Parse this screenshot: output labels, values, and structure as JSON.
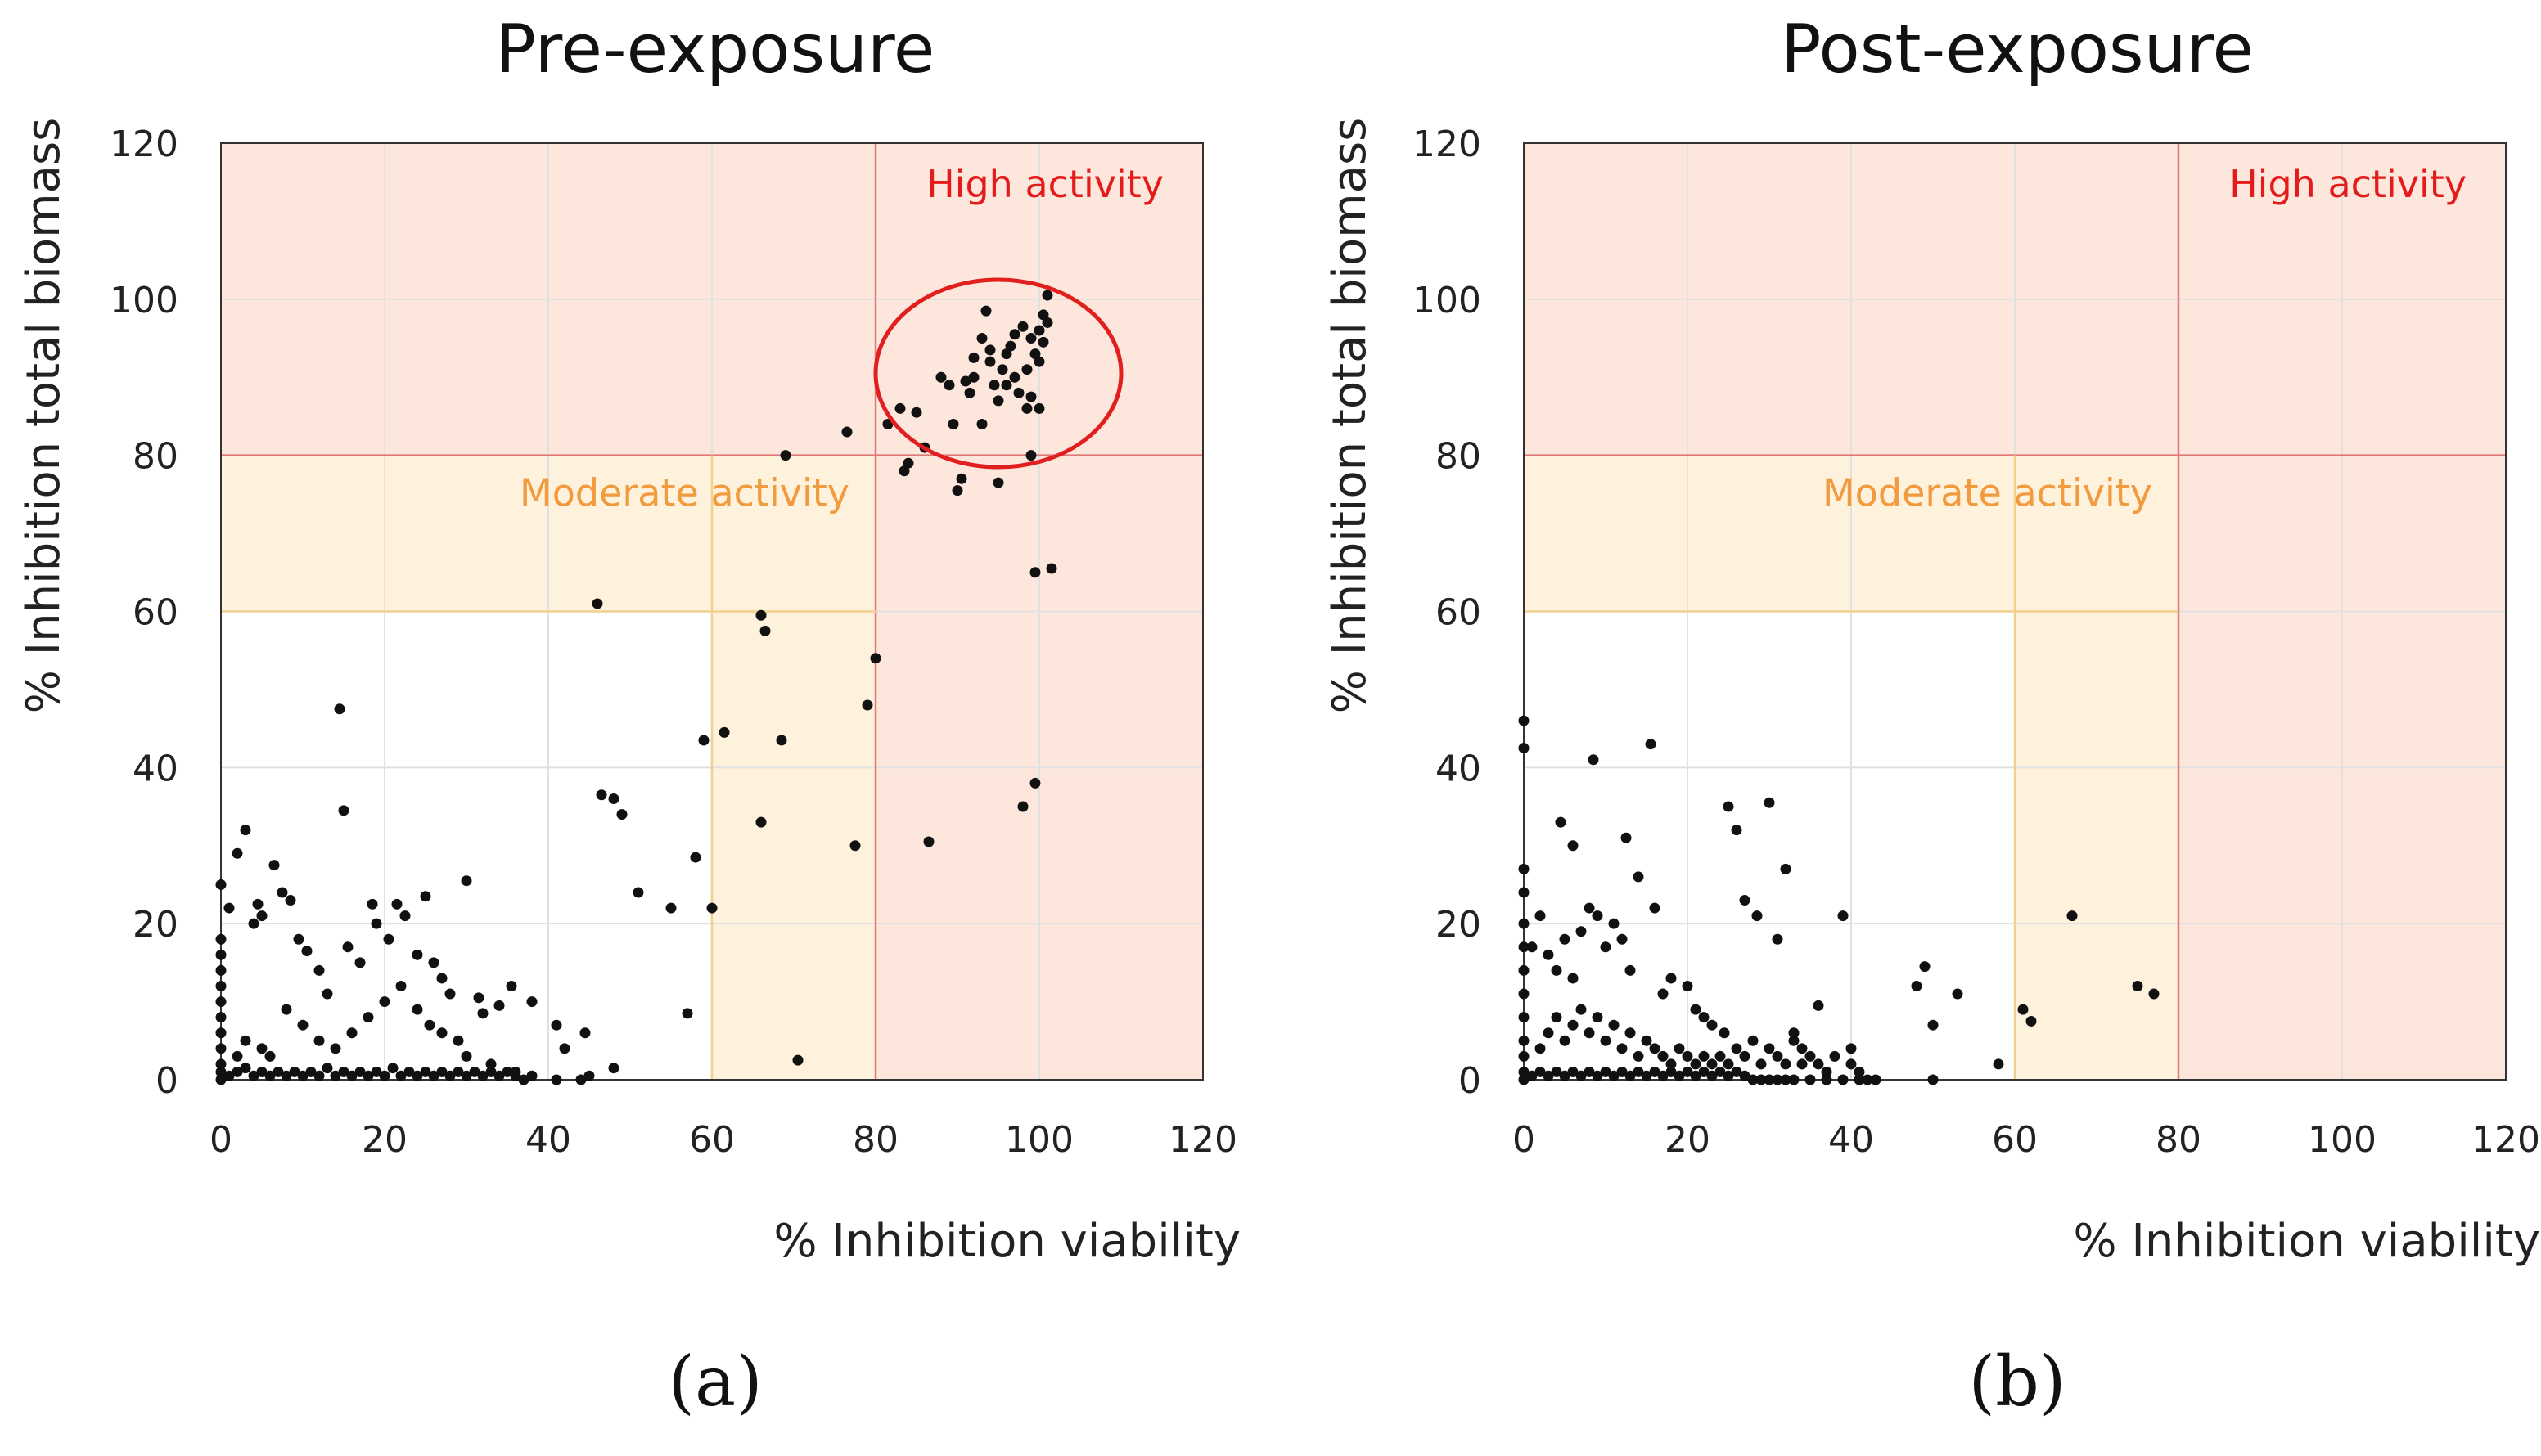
{
  "colors": {
    "high_fill": "#fde7dc",
    "moderate_fill": "#fff2dc",
    "high_line": "#e07a7a",
    "moderate_line": "#f1d08d",
    "high_text": "#e31b1b",
    "moderate_text": "#f19a3e",
    "grid": "#e1e1e1",
    "frame": "#333333",
    "point": "#111111",
    "ellipse": "#e21f1f"
  },
  "chart_data": [
    {
      "type": "scatter",
      "title": "Pre-exposure",
      "xlabel": "% Inhibition viability",
      "ylabel": "% Inhibition total biomass",
      "xlim": [
        0,
        120
      ],
      "ylim": [
        0,
        120
      ],
      "xticks": [
        0,
        20,
        40,
        60,
        80,
        100,
        120
      ],
      "yticks": [
        0,
        20,
        40,
        60,
        80,
        100,
        120
      ],
      "grid": true,
      "panel_label": "(a)",
      "regions": {
        "high": {
          "label": "High activity",
          "x_threshold": 80,
          "y_threshold": 80
        },
        "moderate": {
          "label": "Moderate activity",
          "x_threshold": 60,
          "y_threshold": 60
        }
      },
      "highlight_ellipse": {
        "cx": 95,
        "cy": 90.5,
        "rx": 15,
        "ry": 12
      },
      "points": [
        [
          0,
          25
        ],
        [
          0,
          18
        ],
        [
          0,
          16
        ],
        [
          0,
          14
        ],
        [
          0,
          12
        ],
        [
          0,
          10
        ],
        [
          0,
          8
        ],
        [
          0,
          6
        ],
        [
          0,
          4
        ],
        [
          0,
          2
        ],
        [
          0,
          1
        ],
        [
          0,
          0
        ],
        [
          1,
          22
        ],
        [
          2,
          29
        ],
        [
          3,
          32
        ],
        [
          4,
          20
        ],
        [
          4.5,
          22.5
        ],
        [
          5,
          21
        ],
        [
          6.5,
          27.5
        ],
        [
          7.5,
          24
        ],
        [
          8.5,
          23
        ],
        [
          9.5,
          18
        ],
        [
          14.5,
          47.5
        ],
        [
          15,
          34.5
        ],
        [
          10.5,
          16.5
        ],
        [
          12,
          14
        ],
        [
          13,
          11
        ],
        [
          15.5,
          17
        ],
        [
          17,
          15
        ],
        [
          18.5,
          22.5
        ],
        [
          19,
          20
        ],
        [
          20.5,
          18
        ],
        [
          21.5,
          22.5
        ],
        [
          22.5,
          21
        ],
        [
          24,
          16
        ],
        [
          25,
          23.5
        ],
        [
          26,
          15
        ],
        [
          27,
          13
        ],
        [
          28,
          11
        ],
        [
          30,
          25.5
        ],
        [
          31.5,
          10.5
        ],
        [
          32,
          8.5
        ],
        [
          34,
          9.5
        ],
        [
          35.5,
          12
        ],
        [
          38,
          10
        ],
        [
          41,
          7
        ],
        [
          42,
          4
        ],
        [
          44.5,
          6
        ],
        [
          48,
          1.5
        ],
        [
          20,
          10
        ],
        [
          18,
          8
        ],
        [
          16,
          6
        ],
        [
          14,
          4
        ],
        [
          12,
          5
        ],
        [
          10,
          7
        ],
        [
          8,
          9
        ],
        [
          6,
          3
        ],
        [
          5,
          4
        ],
        [
          3,
          5
        ],
        [
          2,
          3
        ],
        [
          22,
          12
        ],
        [
          24,
          9
        ],
        [
          25.5,
          7
        ],
        [
          27,
          6
        ],
        [
          29,
          5
        ],
        [
          30,
          3
        ],
        [
          33,
          2
        ],
        [
          36,
          1
        ],
        [
          38,
          0.5
        ],
        [
          41,
          0
        ],
        [
          44,
          0
        ],
        [
          45,
          0.5
        ],
        [
          1,
          0.5
        ],
        [
          2,
          1
        ],
        [
          3,
          1.5
        ],
        [
          4,
          0.5
        ],
        [
          5,
          1
        ],
        [
          6,
          0.5
        ],
        [
          7,
          1
        ],
        [
          8,
          0.5
        ],
        [
          9,
          1
        ],
        [
          10,
          0.5
        ],
        [
          11,
          1
        ],
        [
          12,
          0.5
        ],
        [
          13,
          1.5
        ],
        [
          14,
          0.5
        ],
        [
          15,
          1
        ],
        [
          16,
          0.5
        ],
        [
          17,
          1
        ],
        [
          18,
          0.5
        ],
        [
          19,
          1
        ],
        [
          20,
          0.5
        ],
        [
          21,
          1.5
        ],
        [
          22,
          0.5
        ],
        [
          23,
          1
        ],
        [
          24,
          0.5
        ],
        [
          25,
          1
        ],
        [
          26,
          0.5
        ],
        [
          27,
          1
        ],
        [
          28,
          0.5
        ],
        [
          29,
          1
        ],
        [
          30,
          0.5
        ],
        [
          31,
          1
        ],
        [
          32,
          0.5
        ],
        [
          33,
          1
        ],
        [
          34,
          0.5
        ],
        [
          35,
          1
        ],
        [
          36,
          0.5
        ],
        [
          37,
          0
        ],
        [
          46,
          61
        ],
        [
          46.5,
          36.5
        ],
        [
          48,
          36
        ],
        [
          49,
          34
        ],
        [
          51,
          24
        ],
        [
          55,
          22
        ],
        [
          57,
          8.5
        ],
        [
          58,
          28.5
        ],
        [
          59,
          43.5
        ],
        [
          60,
          22
        ],
        [
          61.5,
          44.5
        ],
        [
          66,
          59.5
        ],
        [
          66.5,
          57.5
        ],
        [
          66,
          33
        ],
        [
          68.5,
          43.5
        ],
        [
          69,
          80
        ],
        [
          70.5,
          2.5
        ],
        [
          76.5,
          83
        ],
        [
          77.5,
          30
        ],
        [
          79,
          48
        ],
        [
          80,
          54
        ],
        [
          81.5,
          84
        ],
        [
          83,
          86
        ],
        [
          83.5,
          78
        ],
        [
          84,
          79
        ],
        [
          85,
          85.5
        ],
        [
          86,
          81
        ],
        [
          86.5,
          30.5
        ],
        [
          88,
          90
        ],
        [
          89,
          89
        ],
        [
          89.5,
          84
        ],
        [
          90,
          75.5
        ],
        [
          90.5,
          77
        ],
        [
          91,
          89.5
        ],
        [
          92,
          90
        ],
        [
          93,
          84
        ],
        [
          93.5,
          98.5
        ],
        [
          94,
          92
        ],
        [
          94.5,
          89
        ],
        [
          95,
          76.5
        ],
        [
          95.5,
          91
        ],
        [
          96,
          93
        ],
        [
          96.5,
          94
        ],
        [
          97,
          90
        ],
        [
          97.5,
          88
        ],
        [
          98,
          35
        ],
        [
          98.5,
          86
        ],
        [
          99,
          80
        ],
        [
          99.5,
          65
        ],
        [
          99.5,
          38
        ],
        [
          100,
          92
        ],
        [
          100.5,
          98
        ],
        [
          101,
          100.5
        ],
        [
          101.5,
          65.5
        ],
        [
          99,
          95
        ],
        [
          100,
          96
        ],
        [
          101,
          97
        ],
        [
          98,
          96.5
        ],
        [
          99.5,
          93
        ],
        [
          100.5,
          94.5
        ],
        [
          98.5,
          91
        ],
        [
          97,
          95.5
        ],
        [
          96,
          89
        ],
        [
          95,
          87
        ],
        [
          94,
          93.5
        ],
        [
          93,
          95
        ],
        [
          92,
          92.5
        ],
        [
          91.5,
          88
        ],
        [
          99,
          87.5
        ],
        [
          100,
          86
        ]
      ]
    },
    {
      "type": "scatter",
      "title": "Post-exposure",
      "xlabel": "% Inhibition viability",
      "ylabel": "% Inhibition total biomass",
      "xlim": [
        0,
        120
      ],
      "ylim": [
        0,
        120
      ],
      "xticks": [
        0,
        20,
        40,
        60,
        80,
        100,
        120
      ],
      "yticks": [
        0,
        20,
        40,
        60,
        80,
        100,
        120
      ],
      "grid": true,
      "panel_label": "(b)",
      "regions": {
        "high": {
          "label": "High activity",
          "x_threshold": 80,
          "y_threshold": 80
        },
        "moderate": {
          "label": "Moderate activity",
          "x_threshold": 60,
          "y_threshold": 60
        }
      },
      "points": [
        [
          0,
          46
        ],
        [
          0,
          42.5
        ],
        [
          0,
          27
        ],
        [
          0,
          24
        ],
        [
          0,
          20
        ],
        [
          0,
          17
        ],
        [
          0,
          14
        ],
        [
          0,
          11
        ],
        [
          0,
          8
        ],
        [
          0,
          5
        ],
        [
          0,
          3
        ],
        [
          0,
          1
        ],
        [
          0,
          0
        ],
        [
          1,
          17
        ],
        [
          2,
          21
        ],
        [
          3,
          16
        ],
        [
          4,
          14
        ],
        [
          5,
          18
        ],
        [
          6,
          13
        ],
        [
          7,
          19
        ],
        [
          8,
          22
        ],
        [
          9,
          21
        ],
        [
          10,
          17
        ],
        [
          11,
          20
        ],
        [
          12,
          18
        ],
        [
          13,
          14
        ],
        [
          4.5,
          33
        ],
        [
          6,
          30
        ],
        [
          8.5,
          41
        ],
        [
          12.5,
          31
        ],
        [
          15.5,
          43
        ],
        [
          14,
          26
        ],
        [
          16,
          22
        ],
        [
          17,
          11
        ],
        [
          18,
          13
        ],
        [
          20,
          12
        ],
        [
          21,
          9
        ],
        [
          22,
          8
        ],
        [
          23,
          7
        ],
        [
          24.5,
          6
        ],
        [
          25,
          35
        ],
        [
          26,
          32
        ],
        [
          27,
          23
        ],
        [
          28.5,
          21
        ],
        [
          30,
          35.5
        ],
        [
          31,
          18
        ],
        [
          32,
          27
        ],
        [
          33,
          6
        ],
        [
          34,
          4
        ],
        [
          36,
          9.5
        ],
        [
          39,
          21
        ],
        [
          40,
          4
        ],
        [
          42,
          0
        ],
        [
          49,
          14.5
        ],
        [
          48,
          12
        ],
        [
          50,
          7
        ],
        [
          53,
          11
        ],
        [
          58,
          2
        ],
        [
          61,
          9
        ],
        [
          62,
          7.5
        ],
        [
          67,
          21
        ],
        [
          75,
          12
        ],
        [
          77,
          11
        ],
        [
          1,
          0.5
        ],
        [
          2,
          1
        ],
        [
          3,
          0.5
        ],
        [
          4,
          1
        ],
        [
          5,
          0.5
        ],
        [
          6,
          1
        ],
        [
          7,
          0.5
        ],
        [
          8,
          1
        ],
        [
          9,
          0.5
        ],
        [
          10,
          1
        ],
        [
          11,
          0.5
        ],
        [
          12,
          1
        ],
        [
          13,
          0.5
        ],
        [
          14,
          1
        ],
        [
          15,
          0.5
        ],
        [
          16,
          1
        ],
        [
          17,
          0.5
        ],
        [
          18,
          1
        ],
        [
          19,
          0.5
        ],
        [
          20,
          1
        ],
        [
          21,
          0.5
        ],
        [
          22,
          1
        ],
        [
          23,
          0.5
        ],
        [
          24,
          1
        ],
        [
          25,
          0.5
        ],
        [
          26,
          1
        ],
        [
          27,
          0.5
        ],
        [
          28,
          0
        ],
        [
          29,
          0
        ],
        [
          30,
          0
        ],
        [
          31,
          0
        ],
        [
          32,
          0
        ],
        [
          33,
          0
        ],
        [
          35,
          0
        ],
        [
          37,
          0
        ],
        [
          39,
          0
        ],
        [
          41,
          0
        ],
        [
          43,
          0
        ],
        [
          50,
          0
        ],
        [
          2,
          4
        ],
        [
          3,
          6
        ],
        [
          4,
          8
        ],
        [
          5,
          5
        ],
        [
          6,
          7
        ],
        [
          7,
          9
        ],
        [
          8,
          6
        ],
        [
          9,
          8
        ],
        [
          10,
          5
        ],
        [
          11,
          7
        ],
        [
          12,
          4
        ],
        [
          13,
          6
        ],
        [
          14,
          3
        ],
        [
          15,
          5
        ],
        [
          16,
          4
        ],
        [
          17,
          3
        ],
        [
          18,
          2
        ],
        [
          19,
          4
        ],
        [
          20,
          3
        ],
        [
          21,
          2
        ],
        [
          22,
          3
        ],
        [
          23,
          2
        ],
        [
          24,
          3
        ],
        [
          25,
          2
        ],
        [
          26,
          4
        ],
        [
          27,
          3
        ],
        [
          28,
          5
        ],
        [
          29,
          2
        ],
        [
          30,
          4
        ],
        [
          31,
          3
        ],
        [
          32,
          2
        ],
        [
          33,
          5
        ],
        [
          34,
          2
        ],
        [
          35,
          3
        ],
        [
          36,
          2
        ],
        [
          37,
          1
        ],
        [
          38,
          3
        ],
        [
          40,
          2
        ],
        [
          41,
          1
        ]
      ]
    }
  ]
}
